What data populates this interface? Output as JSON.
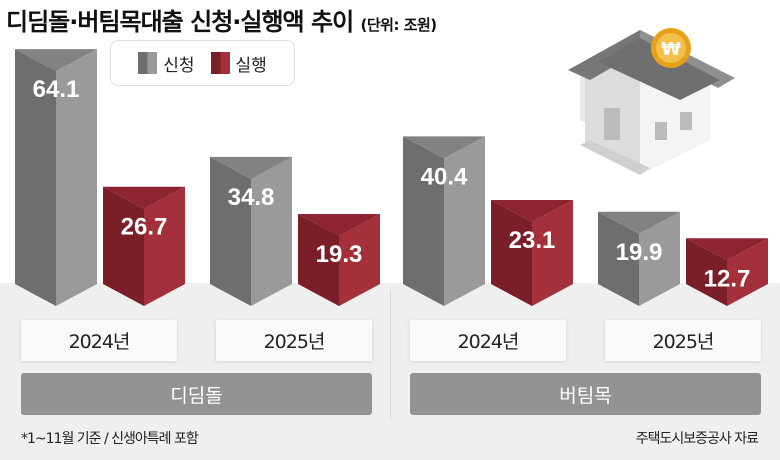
{
  "title": "디딤돌·버팀목대출 신청·실행액 추이",
  "unit": "(단위: 조원)",
  "legend": [
    {
      "label": "신청",
      "color": "#8a8a8a"
    },
    {
      "label": "실행",
      "color": "#9b2a33"
    }
  ],
  "chart_data": {
    "type": "bar",
    "title": "디딤돌·버팀목대출 신청·실행액 추이",
    "unit": "조원",
    "groups": [
      {
        "name": "디딤돌",
        "categories": [
          "2024년",
          "2025년"
        ],
        "series": [
          {
            "name": "신청",
            "values": [
              64.1,
              34.8
            ]
          },
          {
            "name": "실행",
            "values": [
              26.7,
              19.3
            ]
          }
        ]
      },
      {
        "name": "버팀목",
        "categories": [
          "2024년",
          "2025년"
        ],
        "series": [
          {
            "name": "신청",
            "values": [
              40.4,
              19.9
            ]
          },
          {
            "name": "실행",
            "values": [
              23.1,
              12.7
            ]
          }
        ]
      }
    ],
    "colors": {
      "신청": "#8a8a8a",
      "실행": "#9b2a33"
    },
    "grid": false
  },
  "footnote": "*1~11월 기준 / 신생아특례 포함",
  "source": "주택도시보증공사 자료"
}
